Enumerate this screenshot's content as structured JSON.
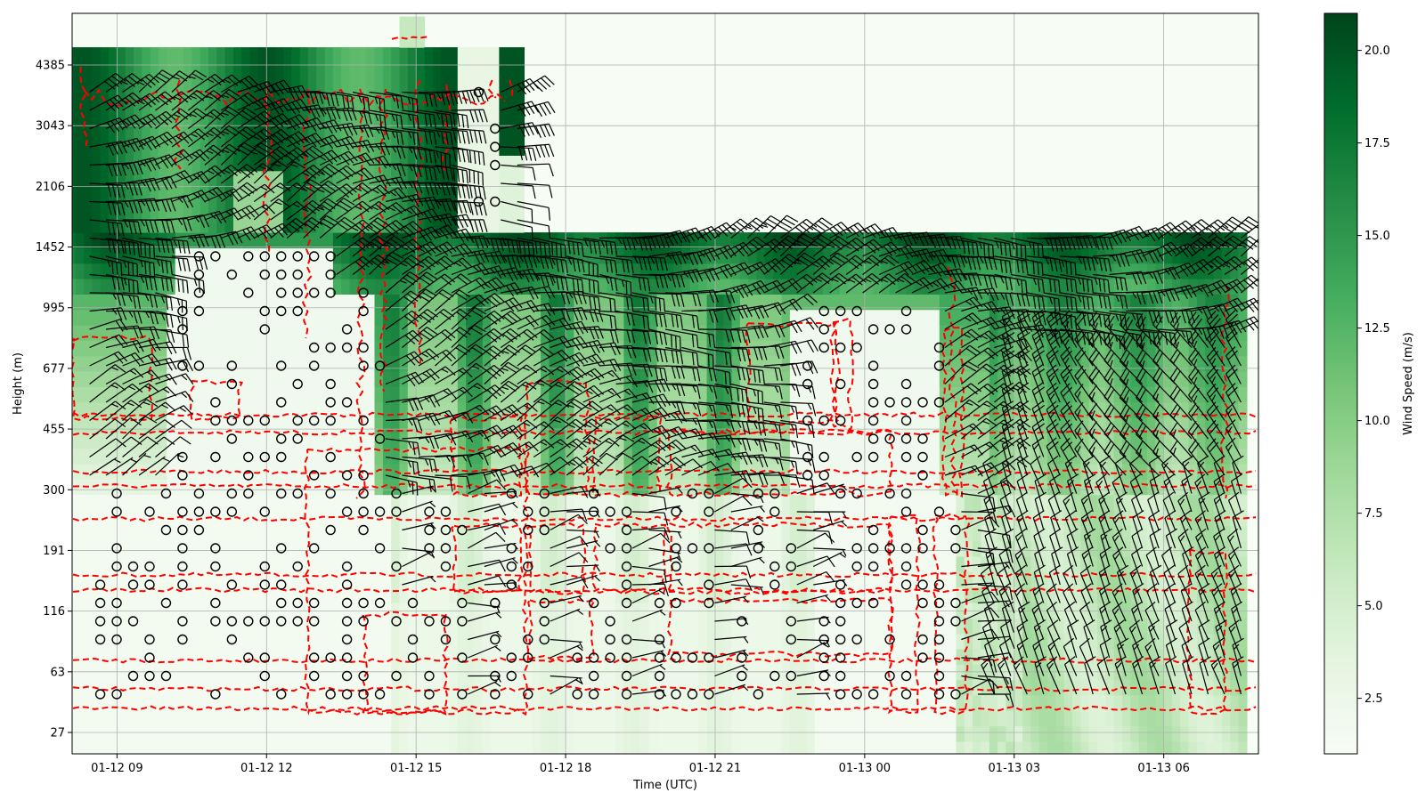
{
  "chart_data": {
    "type": "heatmap",
    "overlay": "wind barbs (knots style) with dashed red contour of wind-speed threshold",
    "xlabel": "Time (UTC)",
    "ylabel": "Height (m)",
    "x_ticks": [
      "01-12 09",
      "01-12 12",
      "01-12 15",
      "01-12 18",
      "01-12 21",
      "01-13 00",
      "01-13 03",
      "01-13 06"
    ],
    "x_range_hours_from_01_12_00": [
      8.1,
      31.9
    ],
    "y_ticks": [
      "27",
      "63",
      "116",
      "191",
      "300",
      "455",
      "677",
      "995",
      "1452",
      "2106",
      "3043",
      "4385"
    ],
    "y_tick_values_m": [
      27,
      63,
      116,
      191,
      300,
      455,
      677,
      995,
      1452,
      2106,
      3043,
      4385
    ],
    "grid": true,
    "colormap": "Greens",
    "colorbar": {
      "label": "Wind Speed (m/s)",
      "min": 1.0,
      "max": 21.0,
      "ticks": [
        "2.5",
        "5.0",
        "7.5",
        "10.0",
        "12.5",
        "15.0",
        "17.5",
        "20.0"
      ],
      "tick_values": [
        2.5,
        5.0,
        7.5,
        10.0,
        12.5,
        15.0,
        17.5,
        20.0
      ],
      "colors": [
        "#f7fcf5",
        "#e5f5e0",
        "#c7e9c0",
        "#a1d99b",
        "#74c476",
        "#41ab5d",
        "#238b45",
        "#006d2c",
        "#00441b"
      ]
    },
    "contour": {
      "color": "#ff0000",
      "style": "dashed"
    },
    "data_extent": {
      "low_levels_full": "01-12 08:00 to 01-13 07:40",
      "mid_levels_top_m": 1900,
      "upper_levels_until": "01-12 17:00"
    }
  }
}
